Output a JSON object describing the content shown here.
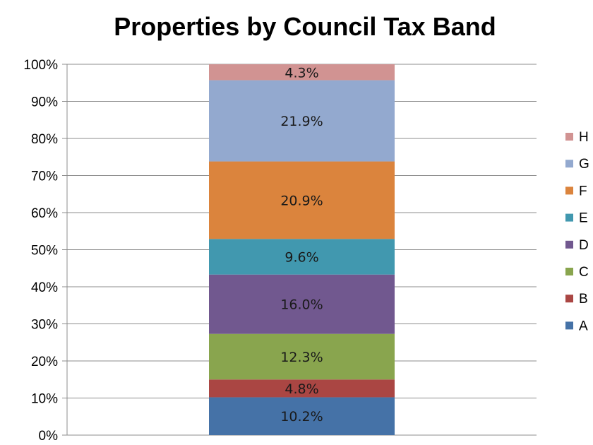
{
  "chart_data": {
    "type": "bar",
    "stacked": true,
    "percent_stacked": true,
    "title": "Properties by Council Tax Band",
    "categories": [
      ""
    ],
    "y_tick_labels": [
      "0%",
      "10%",
      "20%",
      "30%",
      "40%",
      "50%",
      "60%",
      "70%",
      "80%",
      "90%",
      "100%"
    ],
    "ylim": [
      0,
      100
    ],
    "grid": true,
    "legend_position": "right",
    "series": [
      {
        "name": "A",
        "values": [
          10.2
        ],
        "label": "10.2%",
        "color": "#4572A7"
      },
      {
        "name": "B",
        "values": [
          4.8
        ],
        "label": "4.8%",
        "color": "#AA4643"
      },
      {
        "name": "C",
        "values": [
          12.3
        ],
        "label": "12.3%",
        "color": "#89A54E"
      },
      {
        "name": "D",
        "values": [
          16.0
        ],
        "label": "16.0%",
        "color": "#71588F"
      },
      {
        "name": "E",
        "values": [
          9.6
        ],
        "label": "9.6%",
        "color": "#4198AF"
      },
      {
        "name": "F",
        "values": [
          20.9
        ],
        "label": "20.9%",
        "color": "#DB843D"
      },
      {
        "name": "G",
        "values": [
          21.9
        ],
        "label": "21.9%",
        "color": "#93A9CF"
      },
      {
        "name": "H",
        "values": [
          4.3
        ],
        "label": "4.3%",
        "color": "#D19392"
      }
    ]
  }
}
